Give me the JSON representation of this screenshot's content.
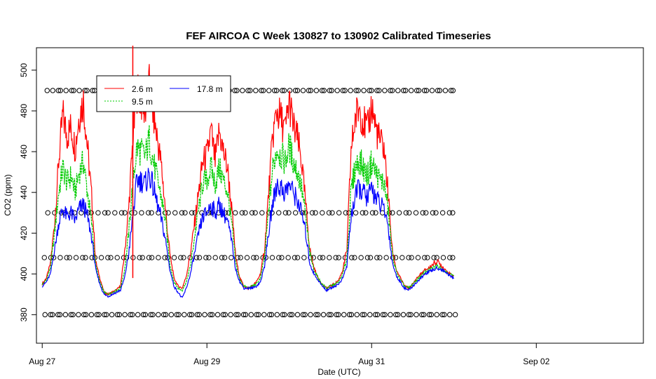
{
  "chart_data": {
    "type": "line",
    "title": "FEF AIRCOA C  Week 130827 to 130902  Calibrated Timeseries",
    "xlabel": "Date (UTC)",
    "ylabel": "CO2 (ppm)",
    "xlim": [
      -0.07,
      7.3
    ],
    "ylim": [
      366,
      511
    ],
    "x_ticks": [
      {
        "value": 0,
        "label": "Aug 27"
      },
      {
        "value": 2,
        "label": "Aug 29"
      },
      {
        "value": 4,
        "label": "Aug 31"
      },
      {
        "value": 6,
        "label": "Sep 02"
      }
    ],
    "y_ticks": [
      380,
      400,
      420,
      440,
      460,
      480,
      500
    ],
    "legend": {
      "position": "top-left",
      "entries": [
        {
          "name": "2.6 m",
          "color": "#ff0000"
        },
        {
          "name": "17.8 m",
          "color": "#0000ff"
        },
        {
          "name": "9.5 m",
          "color": "#00cc00"
        }
      ]
    },
    "series": [
      {
        "name": "2.6 m",
        "color": "#ff0000",
        "x": [
          0,
          0.05,
          0.1,
          0.15,
          0.2,
          0.25,
          0.3,
          0.35,
          0.4,
          0.45,
          0.5,
          0.55,
          0.6,
          0.65,
          0.7,
          0.75,
          0.8,
          0.85,
          0.9,
          0.95,
          1.0,
          1.05,
          1.1,
          1.15,
          1.2,
          1.25,
          1.3,
          1.35,
          1.4,
          1.45,
          1.5,
          1.55,
          1.6,
          1.65,
          1.7,
          1.75,
          1.8,
          1.85,
          1.9,
          1.95,
          2.0,
          2.05,
          2.1,
          2.15,
          2.2,
          2.25,
          2.3,
          2.35,
          2.4,
          2.45,
          2.5,
          2.55,
          2.6,
          2.65,
          2.7,
          2.75,
          2.8,
          2.85,
          2.9,
          2.95,
          3.0,
          3.05,
          3.1,
          3.15,
          3.2,
          3.25,
          3.3,
          3.35,
          3.4,
          3.45,
          3.5,
          3.55,
          3.6,
          3.65,
          3.7,
          3.75,
          3.8,
          3.85,
          3.9,
          3.95,
          4.0,
          4.05,
          4.1,
          4.15,
          4.2,
          4.25,
          4.3,
          4.35,
          4.4,
          4.45,
          4.5,
          4.55,
          4.6,
          4.65,
          4.7,
          4.75,
          4.8,
          4.85,
          4.9,
          4.95,
          5.0
        ],
        "values": [
          395,
          398,
          405,
          425,
          455,
          478,
          468,
          472,
          462,
          478,
          485,
          462,
          438,
          406,
          398,
          391,
          390,
          391,
          392,
          394,
          410,
          432,
          465,
          490,
          485,
          480,
          492,
          478,
          466,
          452,
          430,
          410,
          398,
          394,
          393,
          399,
          410,
          425,
          440,
          455,
          458,
          470,
          455,
          470,
          460,
          452,
          432,
          408,
          398,
          394,
          393,
          394,
          396,
          400,
          412,
          440,
          468,
          480,
          476,
          470,
          485,
          472,
          466,
          455,
          434,
          412,
          403,
          398,
          395,
          393,
          394,
          395,
          397,
          402,
          412,
          460,
          476,
          482,
          475,
          470,
          483,
          472,
          465,
          462,
          440,
          412,
          402,
          398,
          394,
          393,
          395,
          398,
          400,
          402,
          403,
          405,
          406,
          404,
          402,
          400,
          399
        ]
      },
      {
        "name": "9.5 m",
        "color": "#00cc00",
        "x": [
          0,
          0.05,
          0.1,
          0.15,
          0.2,
          0.25,
          0.3,
          0.35,
          0.4,
          0.45,
          0.5,
          0.55,
          0.6,
          0.65,
          0.7,
          0.75,
          0.8,
          0.85,
          0.9,
          0.95,
          1.0,
          1.05,
          1.1,
          1.15,
          1.2,
          1.25,
          1.3,
          1.35,
          1.4,
          1.45,
          1.5,
          1.55,
          1.6,
          1.65,
          1.7,
          1.75,
          1.8,
          1.85,
          1.9,
          1.95,
          2.0,
          2.05,
          2.1,
          2.15,
          2.2,
          2.25,
          2.3,
          2.35,
          2.4,
          2.45,
          2.5,
          2.55,
          2.6,
          2.65,
          2.7,
          2.75,
          2.8,
          2.85,
          2.9,
          2.95,
          3.0,
          3.05,
          3.1,
          3.15,
          3.2,
          3.25,
          3.3,
          3.35,
          3.4,
          3.45,
          3.5,
          3.55,
          3.6,
          3.65,
          3.7,
          3.75,
          3.8,
          3.85,
          3.9,
          3.95,
          4.0,
          4.05,
          4.1,
          4.15,
          4.2,
          4.25,
          4.3,
          4.35,
          4.4,
          4.45,
          4.5,
          4.55,
          4.6,
          4.65,
          4.7,
          4.75,
          4.8,
          4.85,
          4.9,
          4.95,
          5.0
        ],
        "values": [
          395,
          397,
          403,
          420,
          440,
          452,
          445,
          448,
          440,
          450,
          455,
          440,
          425,
          404,
          396,
          391,
          390,
          391,
          392,
          393,
          402,
          420,
          445,
          462,
          460,
          458,
          466,
          455,
          446,
          437,
          425,
          405,
          396,
          393,
          392,
          396,
          404,
          418,
          432,
          445,
          446,
          452,
          444,
          452,
          446,
          440,
          425,
          405,
          397,
          394,
          393,
          394,
          395,
          398,
          408,
          432,
          452,
          462,
          458,
          455,
          463,
          455,
          450,
          442,
          428,
          410,
          402,
          398,
          395,
          393,
          394,
          395,
          396,
          400,
          408,
          440,
          452,
          456,
          452,
          448,
          455,
          450,
          446,
          445,
          432,
          410,
          401,
          397,
          394,
          393,
          395,
          397,
          399,
          401,
          402,
          403,
          404,
          403,
          401,
          400,
          399
        ]
      },
      {
        "name": "17.8 m",
        "color": "#0000ff",
        "x": [
          0,
          0.05,
          0.1,
          0.15,
          0.2,
          0.25,
          0.3,
          0.35,
          0.4,
          0.45,
          0.5,
          0.55,
          0.6,
          0.65,
          0.7,
          0.75,
          0.8,
          0.85,
          0.9,
          0.95,
          1.0,
          1.05,
          1.1,
          1.15,
          1.2,
          1.25,
          1.3,
          1.35,
          1.4,
          1.45,
          1.5,
          1.55,
          1.6,
          1.65,
          1.7,
          1.75,
          1.8,
          1.85,
          1.9,
          1.95,
          2.0,
          2.05,
          2.1,
          2.15,
          2.2,
          2.25,
          2.3,
          2.35,
          2.4,
          2.45,
          2.5,
          2.55,
          2.6,
          2.65,
          2.7,
          2.75,
          2.8,
          2.85,
          2.9,
          2.95,
          3.0,
          3.05,
          3.1,
          3.15,
          3.2,
          3.25,
          3.3,
          3.35,
          3.4,
          3.45,
          3.5,
          3.55,
          3.6,
          3.65,
          3.7,
          3.75,
          3.8,
          3.85,
          3.9,
          3.95,
          4.0,
          4.05,
          4.1,
          4.15,
          4.2,
          4.25,
          4.3,
          4.35,
          4.4,
          4.45,
          4.5,
          4.55,
          4.6,
          4.65,
          4.7,
          4.75,
          4.8,
          4.85,
          4.9,
          4.95,
          5.0
        ],
        "values": [
          394,
          396,
          400,
          412,
          425,
          432,
          428,
          430,
          426,
          432,
          434,
          428,
          418,
          402,
          395,
          390,
          389,
          390,
          391,
          392,
          398,
          410,
          428,
          446,
          446,
          444,
          449,
          442,
          434,
          426,
          416,
          402,
          394,
          391,
          388,
          393,
          400,
          410,
          420,
          428,
          430,
          434,
          430,
          434,
          430,
          426,
          416,
          402,
          396,
          393,
          393,
          393,
          394,
          396,
          404,
          420,
          435,
          444,
          442,
          440,
          444,
          440,
          436,
          430,
          420,
          405,
          400,
          397,
          394,
          392,
          393,
          394,
          395,
          398,
          404,
          428,
          438,
          442,
          440,
          437,
          442,
          438,
          434,
          432,
          424,
          406,
          399,
          396,
          393,
          392,
          394,
          396,
          398,
          400,
          401,
          402,
          403,
          402,
          401,
          399,
          398
        ]
      }
    ],
    "flag_rows": [
      {
        "y": 490,
        "x_start": 0.08,
        "x_end": 5.0,
        "count": 95
      },
      {
        "y": 430,
        "x_start": 0.08,
        "x_end": 5.0,
        "count": 75
      },
      {
        "y": 408,
        "x_start": 0.03,
        "x_end": 5.0,
        "count": 80
      },
      {
        "y": 380,
        "x_start": 0.03,
        "x_end": 5.0,
        "count": 98
      }
    ]
  }
}
